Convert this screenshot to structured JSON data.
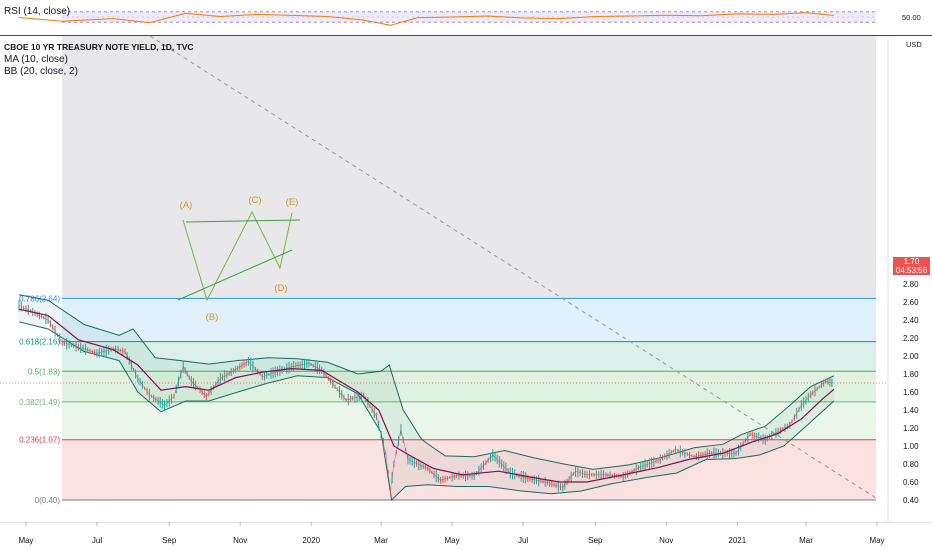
{
  "chart_data": {
    "type": "line",
    "title": "CBOE 10 YR TREASURY NOTE YIELD, 1D, TVC",
    "overlays": [
      "MA (10, close)",
      "BB (20, close, 2)"
    ],
    "currency": "USD",
    "ylim": [
      0.3,
      2.9
    ],
    "y_ticks": [
      "2.80",
      "2.60",
      "2.40",
      "2.20",
      "2.00",
      "1.80",
      "1.60",
      "1.40",
      "1.20",
      "1.00",
      "0.80",
      "0.60",
      "0.40"
    ],
    "x_ticks": [
      "May",
      "Jul",
      "Sep",
      "Nov",
      "2020",
      "Mar",
      "May",
      "Jul",
      "Sep",
      "Nov",
      "2021",
      "Mar",
      "May"
    ],
    "last_price": "1.70",
    "countdown": "04:53:56",
    "fib_levels": [
      {
        "label": "0.786(2.64)",
        "value": 2.64,
        "color": "#2196f3"
      },
      {
        "label": "0.618(2.16)",
        "value": 2.16,
        "color": "#089981"
      },
      {
        "label": "0.5(1.83)",
        "value": 1.83,
        "color": "#4caf50"
      },
      {
        "label": "0.382(1.49)",
        "value": 1.49,
        "color": "#66bb6a"
      },
      {
        "label": "0.236(1.07)",
        "value": 1.07,
        "color": "#f23645"
      },
      {
        "label": "0(0.40)",
        "value": 0.4,
        "color": "#787b86"
      }
    ],
    "wave_labels": [
      "(A)",
      "(B)",
      "(C)",
      "(D)",
      "(E)"
    ],
    "price_series": {
      "name": "",
      "x": [
        "2019-04-25",
        "2019-05-05",
        "2019-05-20",
        "2019-06-01",
        "2019-06-15",
        "2019-07-01",
        "2019-07-15",
        "2019-07-25",
        "2019-08-05",
        "2019-08-15",
        "2019-08-28",
        "2019-09-05",
        "2019-09-13",
        "2019-09-20",
        "2019-10-03",
        "2019-10-15",
        "2019-10-28",
        "2019-11-08",
        "2019-11-20",
        "2019-12-03",
        "2019-12-15",
        "2019-12-30",
        "2020-01-10",
        "2020-01-31",
        "2020-02-15",
        "2020-02-26",
        "2020-03-05",
        "2020-03-09",
        "2020-03-12",
        "2020-03-18",
        "2020-03-24",
        "2020-04-10",
        "2020-04-21",
        "2020-05-05",
        "2020-05-20",
        "2020-06-05",
        "2020-06-20",
        "2020-07-05",
        "2020-07-20",
        "2020-08-04",
        "2020-08-15",
        "2020-08-25",
        "2020-09-10",
        "2020-09-25",
        "2020-10-10",
        "2020-10-25",
        "2020-11-09",
        "2020-11-25",
        "2020-12-10",
        "2020-12-31",
        "2021-01-12",
        "2021-01-25",
        "2021-02-05",
        "2021-02-15",
        "2021-02-25",
        "2021-03-05",
        "2021-03-18",
        "2021-03-25"
      ],
      "y": [
        2.56,
        2.5,
        2.4,
        2.15,
        2.1,
        2.03,
        2.08,
        2.05,
        1.75,
        1.57,
        1.45,
        1.55,
        1.88,
        1.72,
        1.55,
        1.75,
        1.85,
        1.94,
        1.77,
        1.83,
        1.88,
        1.92,
        1.84,
        1.51,
        1.56,
        1.33,
        0.92,
        0.5,
        0.8,
        1.18,
        0.85,
        0.75,
        0.62,
        0.67,
        0.67,
        0.9,
        0.7,
        0.64,
        0.6,
        0.54,
        0.72,
        0.68,
        0.68,
        0.66,
        0.77,
        0.84,
        0.96,
        0.88,
        0.92,
        0.92,
        1.13,
        1.07,
        1.16,
        1.23,
        1.45,
        1.57,
        1.72,
        1.7
      ]
    },
    "ma_series": {
      "name": "MA (10, close)",
      "x": [
        "2019-04-25",
        "2019-05-20",
        "2019-06-15",
        "2019-07-15",
        "2019-08-05",
        "2019-08-25",
        "2019-09-15",
        "2019-10-05",
        "2019-10-28",
        "2019-11-20",
        "2019-12-15",
        "2020-01-10",
        "2020-02-10",
        "2020-02-28",
        "2020-03-12",
        "2020-03-25",
        "2020-04-15",
        "2020-05-10",
        "2020-06-10",
        "2020-07-05",
        "2020-08-01",
        "2020-08-25",
        "2020-09-25",
        "2020-10-25",
        "2020-11-20",
        "2020-12-20",
        "2021-01-15",
        "2021-02-05",
        "2021-02-25",
        "2021-03-15",
        "2021-03-25"
      ],
      "y": [
        2.52,
        2.45,
        2.18,
        2.07,
        1.9,
        1.62,
        1.66,
        1.62,
        1.76,
        1.82,
        1.86,
        1.84,
        1.6,
        1.4,
        1.0,
        0.9,
        0.75,
        0.68,
        0.72,
        0.66,
        0.6,
        0.6,
        0.68,
        0.76,
        0.85,
        0.92,
        1.05,
        1.14,
        1.3,
        1.52,
        1.63
      ]
    },
    "bb_upper": {
      "name": "BB (20, close, 2)",
      "x": [
        "2019-04-25",
        "2019-05-20",
        "2019-06-20",
        "2019-07-20",
        "2019-08-01",
        "2019-08-20",
        "2019-09-10",
        "2019-10-05",
        "2019-10-30",
        "2019-11-25",
        "2019-12-20",
        "2020-01-15",
        "2020-02-10",
        "2020-03-01",
        "2020-03-08",
        "2020-03-20",
        "2020-04-05",
        "2020-04-25",
        "2020-05-20",
        "2020-06-15",
        "2020-07-10",
        "2020-08-05",
        "2020-08-30",
        "2020-09-30",
        "2020-10-30",
        "2020-11-25",
        "2020-12-20",
        "2021-01-05",
        "2021-01-25",
        "2021-02-15",
        "2021-03-05",
        "2021-03-25"
      ],
      "y": [
        2.68,
        2.62,
        2.35,
        2.23,
        2.3,
        1.98,
        1.95,
        1.91,
        1.95,
        1.98,
        1.97,
        1.93,
        1.8,
        1.83,
        1.9,
        1.4,
        1.07,
        0.89,
        0.88,
        0.95,
        0.87,
        0.8,
        0.74,
        0.79,
        0.88,
        0.98,
        1.02,
        1.13,
        1.22,
        1.45,
        1.66,
        1.78
      ]
    },
    "bb_lower": {
      "name": "BB (20, close, 2)",
      "x": [
        "2019-04-25",
        "2019-05-20",
        "2019-06-20",
        "2019-07-20",
        "2019-08-05",
        "2019-08-25",
        "2019-09-15",
        "2019-10-05",
        "2019-10-30",
        "2019-11-25",
        "2019-12-20",
        "2020-01-15",
        "2020-02-10",
        "2020-03-01",
        "2020-03-10",
        "2020-03-22",
        "2020-04-10",
        "2020-05-05",
        "2020-06-01",
        "2020-06-30",
        "2020-07-25",
        "2020-08-20",
        "2020-09-15",
        "2020-10-15",
        "2020-11-10",
        "2020-12-05",
        "2020-12-30",
        "2021-01-20",
        "2021-02-10",
        "2021-03-01",
        "2021-03-25"
      ],
      "y": [
        2.38,
        2.3,
        2.05,
        1.95,
        1.6,
        1.38,
        1.5,
        1.5,
        1.6,
        1.7,
        1.78,
        1.76,
        1.58,
        1.15,
        0.4,
        0.55,
        0.57,
        0.55,
        0.55,
        0.5,
        0.47,
        0.5,
        0.58,
        0.65,
        0.7,
        0.85,
        0.86,
        0.9,
        1.0,
        1.22,
        1.5
      ]
    },
    "rsi": {
      "title": "RSI (14, close)",
      "level_label": "50.00",
      "upper": 70,
      "lower": 30,
      "x": [
        "2019-04-25",
        "2019-06-01",
        "2019-07-15",
        "2019-08-15",
        "2019-09-15",
        "2019-10-15",
        "2019-11-15",
        "2019-12-15",
        "2020-01-15",
        "2020-02-15",
        "2020-03-09",
        "2020-04-01",
        "2020-05-01",
        "2020-06-01",
        "2020-07-01",
        "2020-08-01",
        "2020-09-01",
        "2020-10-01",
        "2020-11-01",
        "2020-12-01",
        "2021-01-01",
        "2021-02-01",
        "2021-03-01",
        "2021-03-25"
      ],
      "y": [
        48,
        34,
        44,
        28,
        64,
        52,
        60,
        56,
        52,
        38,
        18,
        47,
        50,
        54,
        46,
        44,
        52,
        54,
        57,
        55,
        62,
        60,
        66,
        56
      ]
    },
    "grid": false,
    "legend": "top-left"
  }
}
